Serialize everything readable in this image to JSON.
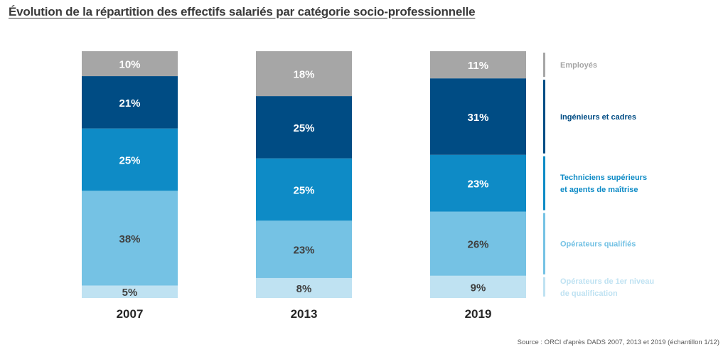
{
  "title": "Évolution de la répartition des effectifs salariés par catégorie socio-professionnelle",
  "source": "Source : ORCI d'après DADS 2007, 2013 et 2019 (échantillon 1/12)",
  "colors": {
    "employes": "#a6a6a6",
    "ingenieurs": "#004c84",
    "techniciens": "#0e8bc6",
    "qualifies": "#75c2e4",
    "premier_niveau": "#bfe2f2",
    "text_dark": "#404040",
    "text_light": "#ffffff"
  },
  "chart_data": {
    "type": "bar",
    "stacked": true,
    "unit": "%",
    "categories": [
      "2007",
      "2013",
      "2019"
    ],
    "series": [
      {
        "name": "Opérateurs de 1er niveau de qualification",
        "legend_lines": [
          "Opérateurs de 1er niveau",
          "de qualification"
        ],
        "color_key": "premier_niveau",
        "values": [
          5,
          8,
          9
        ],
        "labels": [
          "5%",
          "8%",
          "9%"
        ],
        "label_color": "dark"
      },
      {
        "name": "Opérateurs qualifiés",
        "legend_lines": [
          "Opérateurs qualifiés"
        ],
        "color_key": "qualifies",
        "values": [
          38,
          23,
          26
        ],
        "labels": [
          "38%",
          "23%",
          "26%"
        ],
        "label_color": "dark"
      },
      {
        "name": "Techniciens supérieurs et agents de maîtrise",
        "legend_lines": [
          "Techniciens supérieurs",
          "et agents de maîtrise"
        ],
        "color_key": "techniciens",
        "values": [
          25,
          25,
          23
        ],
        "labels": [
          "25%",
          "25%",
          "23%"
        ],
        "label_color": "light"
      },
      {
        "name": "Ingénieurs et cadres",
        "legend_lines": [
          "Ingénieurs et cadres"
        ],
        "color_key": "ingenieurs",
        "values": [
          21,
          25,
          31
        ],
        "labels": [
          "21%",
          "25%",
          "31%"
        ],
        "label_color": "light"
      },
      {
        "name": "Employés",
        "legend_lines": [
          "Employés"
        ],
        "color_key": "employes",
        "values": [
          10,
          18,
          11
        ],
        "labels": [
          "10%",
          "18%",
          "11%"
        ],
        "label_color": "light"
      }
    ],
    "legend_position": "right",
    "grid": false
  }
}
